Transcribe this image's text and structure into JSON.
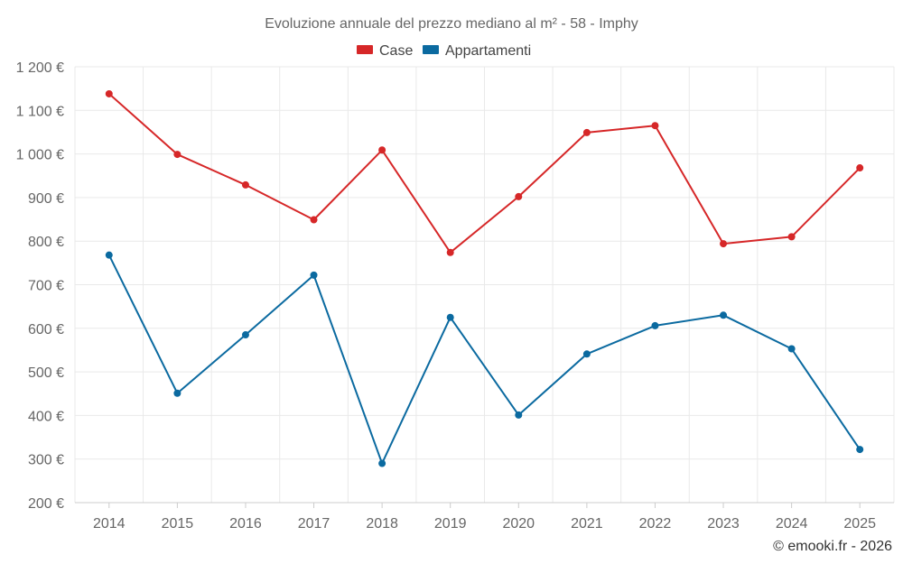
{
  "chart_data": {
    "type": "line",
    "title": "Evoluzione annuale del prezzo mediano al m² - 58 - Imphy",
    "categories": [
      "2014",
      "2015",
      "2016",
      "2017",
      "2018",
      "2019",
      "2020",
      "2021",
      "2022",
      "2023",
      "2024",
      "2025"
    ],
    "series": [
      {
        "name": "Case",
        "color": "#d62728",
        "values": [
          1138,
          999,
          929,
          849,
          1009,
          774,
          902,
          1049,
          1065,
          794,
          810,
          968
        ]
      },
      {
        "name": "Appartamenti",
        "color": "#0b6aa0",
        "values": [
          768,
          451,
          585,
          722,
          290,
          625,
          401,
          541,
          606,
          630,
          553,
          322
        ]
      }
    ],
    "ylim": [
      200,
      1200
    ],
    "yticks": [
      200,
      300,
      400,
      500,
      600,
      700,
      800,
      900,
      1000,
      1100,
      1200
    ],
    "ytick_labels": [
      "200 €",
      "300 €",
      "400 €",
      "500 €",
      "600 €",
      "700 €",
      "800 €",
      "900 €",
      "1 000 €",
      "1 100 €",
      "1 200 €"
    ],
    "legend_position": "top-center",
    "grid": true
  },
  "credit": "© emooki.fr - 2026"
}
